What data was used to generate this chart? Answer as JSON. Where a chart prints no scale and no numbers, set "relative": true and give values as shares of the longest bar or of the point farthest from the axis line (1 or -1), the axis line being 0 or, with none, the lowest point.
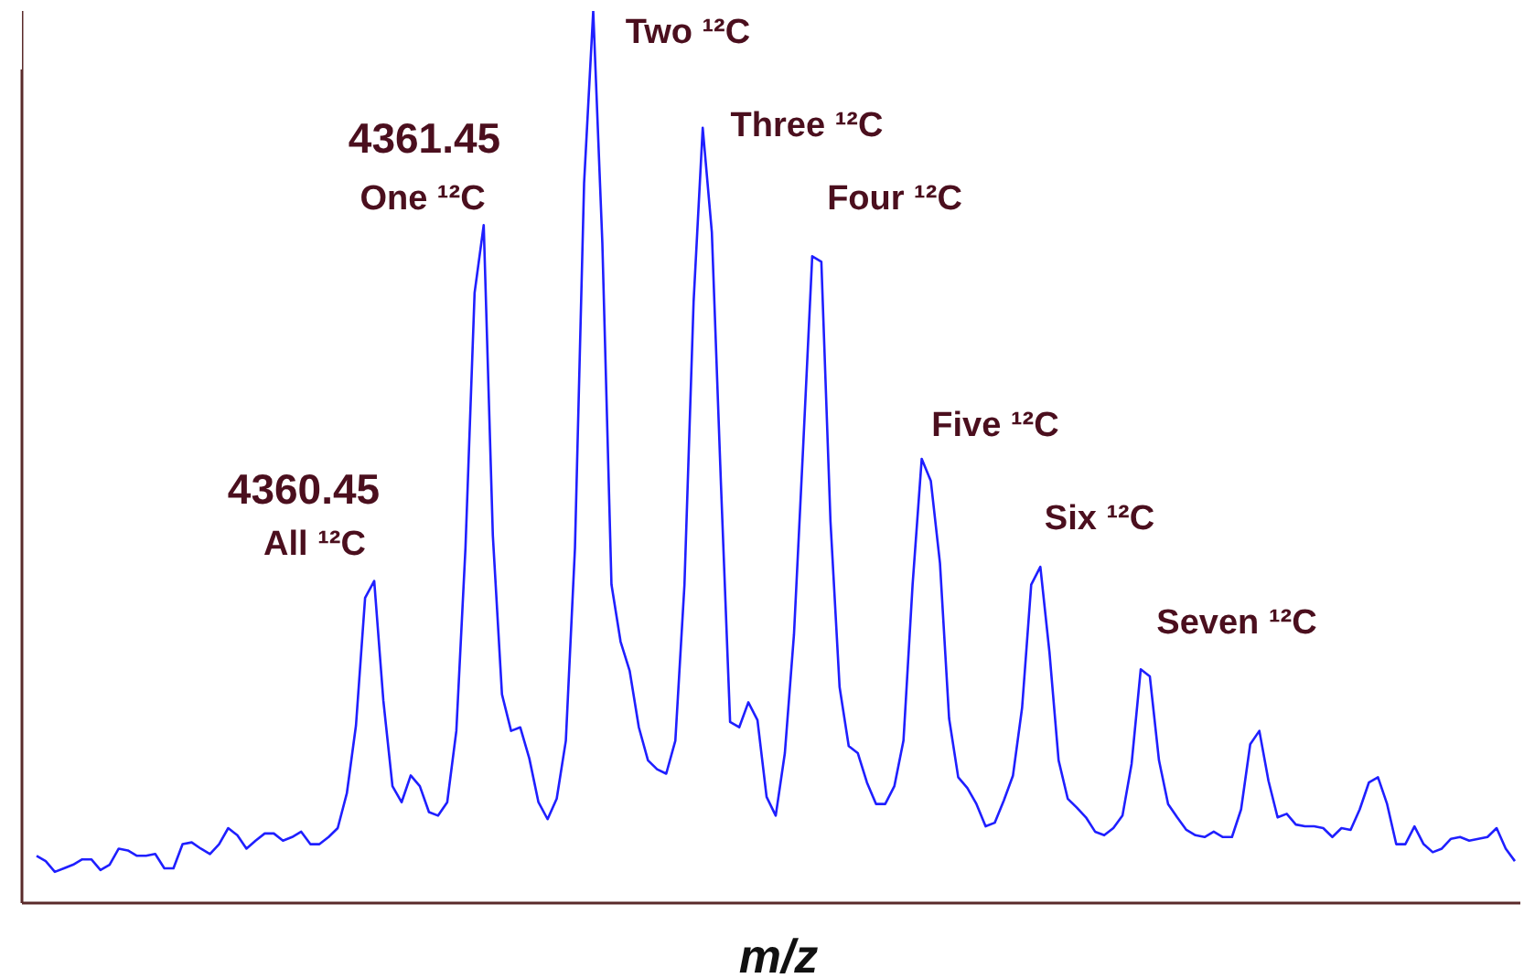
{
  "chart_data": {
    "type": "line",
    "relative": true,
    "xlabel": "m/z",
    "marker": "none",
    "grid": false,
    "legend": false,
    "categories": [
      null,
      null,
      null,
      null,
      null,
      null,
      null,
      null,
      null,
      null,
      null,
      null,
      null,
      null,
      null,
      null,
      null,
      null,
      null,
      null,
      null,
      null,
      null,
      null,
      null,
      null,
      null,
      null,
      null,
      null,
      null,
      null,
      null,
      null,
      null,
      null,
      null,
      null,
      null,
      null,
      null,
      null,
      null,
      null,
      null,
      null,
      null,
      null,
      null,
      null,
      null,
      null,
      null,
      null,
      null,
      null,
      null,
      null,
      null,
      null,
      null,
      null,
      null,
      null,
      null,
      null,
      null,
      null,
      null,
      null,
      null,
      null,
      null,
      null,
      null,
      null,
      null,
      null,
      null,
      null,
      null,
      null,
      null,
      null,
      null,
      null,
      null,
      null,
      null,
      null,
      null,
      null,
      null,
      null,
      null,
      null,
      null,
      null,
      null,
      null,
      null,
      null,
      null,
      null,
      null,
      null,
      null,
      null,
      null,
      null,
      null,
      null,
      null,
      null,
      null,
      null,
      null,
      null,
      null,
      null,
      null,
      null,
      null,
      null,
      null,
      null,
      null,
      null,
      null,
      null,
      null,
      null,
      null,
      null,
      null,
      null,
      null,
      null,
      null,
      null,
      null,
      null,
      null,
      null,
      null,
      null,
      null,
      null,
      null,
      null,
      null,
      null,
      null,
      null,
      null,
      null,
      null,
      null,
      null,
      null,
      null,
      null,
      null
    ],
    "series": [
      {
        "color": "#1f1fff",
        "values": [
          0.053,
          0.047,
          0.035,
          0.039,
          0.043,
          0.049,
          0.049,
          0.037,
          0.043,
          0.061,
          0.059,
          0.053,
          0.053,
          0.055,
          0.039,
          0.039,
          0.066,
          0.068,
          0.061,
          0.055,
          0.066,
          0.084,
          0.076,
          0.061,
          0.07,
          0.078,
          0.078,
          0.07,
          0.074,
          0.08,
          0.066,
          0.066,
          0.074,
          0.084,
          0.123,
          0.199,
          0.342,
          0.361,
          0.227,
          0.131,
          0.113,
          0.143,
          0.131,
          0.102,
          0.098,
          0.113,
          0.193,
          0.398,
          0.684,
          0.76,
          0.412,
          0.234,
          0.193,
          0.197,
          0.162,
          0.113,
          0.094,
          0.117,
          0.182,
          0.398,
          0.807,
          1,
          0.74,
          0.357,
          0.293,
          0.26,
          0.197,
          0.16,
          0.15,
          0.145,
          0.182,
          0.357,
          0.674,
          0.869,
          0.752,
          0.469,
          0.203,
          0.197,
          0.225,
          0.205,
          0.119,
          0.098,
          0.168,
          0.301,
          0.51,
          0.725,
          0.719,
          0.428,
          0.242,
          0.176,
          0.168,
          0.135,
          0.111,
          0.111,
          0.131,
          0.182,
          0.357,
          0.498,
          0.473,
          0.381,
          0.207,
          0.141,
          0.129,
          0.111,
          0.086,
          0.09,
          0.115,
          0.143,
          0.219,
          0.357,
          0.377,
          0.281,
          0.16,
          0.117,
          0.107,
          0.096,
          0.08,
          0.076,
          0.084,
          0.098,
          0.156,
          0.262,
          0.254,
          0.16,
          0.111,
          0.096,
          0.082,
          0.076,
          0.074,
          0.08,
          0.074,
          0.074,
          0.105,
          0.178,
          0.193,
          0.137,
          0.096,
          0.1,
          0.088,
          0.086,
          0.086,
          0.084,
          0.074,
          0.084,
          0.082,
          0.105,
          0.135,
          0.141,
          0.111,
          0.066,
          0.066,
          0.086,
          0.066,
          0.057,
          0.061,
          0.072,
          0.074,
          0.07,
          0.072,
          0.074,
          0.084,
          0.061,
          0.047
        ]
      }
    ],
    "annotations": [
      "4360.45",
      "All ¹²C",
      "4361.45",
      "One ¹²C",
      "Two ¹²C",
      "Three ¹²C",
      "Four ¹²C",
      "Five ¹²C",
      "Six ¹²C",
      "Seven ¹²C"
    ]
  }
}
